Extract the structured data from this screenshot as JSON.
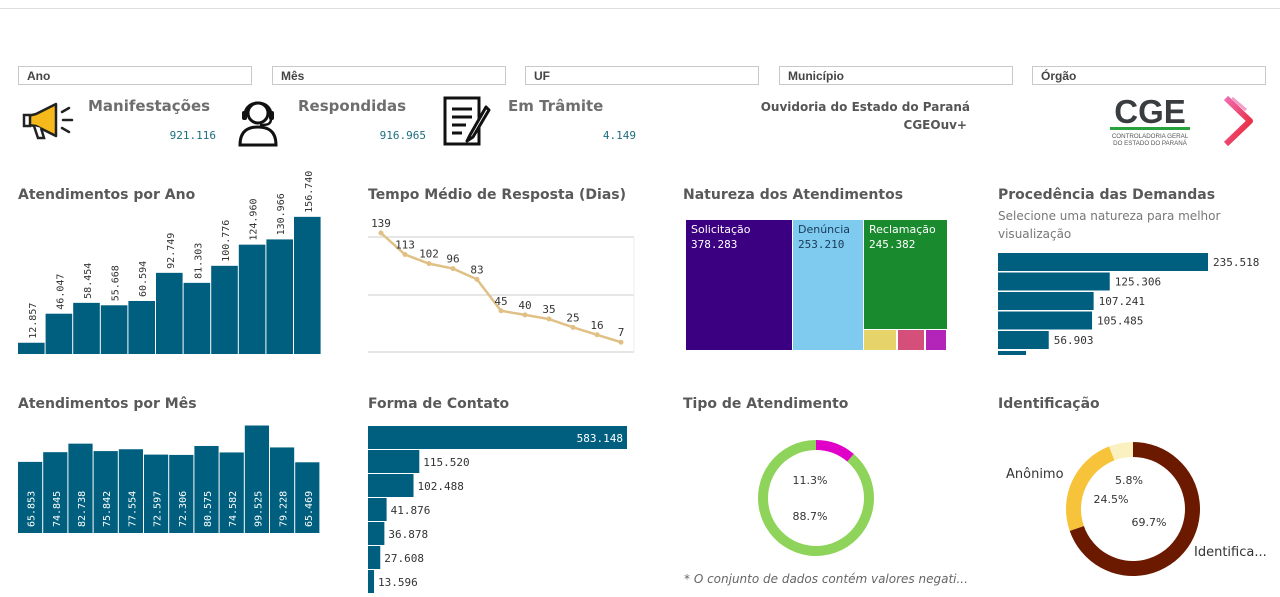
{
  "filters": [
    "Ano",
    "Mês",
    "UF",
    "Município",
    "Órgão"
  ],
  "kpis": [
    {
      "title": "Manifestações",
      "value": "921.116",
      "icon": "megaphone-icon"
    },
    {
      "title": "Respondidas",
      "value": "916.965",
      "icon": "headset-icon"
    },
    {
      "title": "Em Trâmite",
      "value": "4.149",
      "icon": "document-pen-icon"
    }
  ],
  "org": {
    "line1": "Ouvidoria do Estado do Paraná",
    "line2": "CGEOuv+"
  },
  "logo": {
    "text": "CGE",
    "sub1": "CONTROLADORIA GERAL",
    "sub2": "DO ESTADO DO PARANÁ"
  },
  "colors": {
    "teal": "#005f7f",
    "gold": "#e0c084",
    "purple": "#3b0082",
    "lightblue": "#7ecbef",
    "green": "#1a8a2e",
    "lime": "#8ed35a",
    "magenta": "#e000c8",
    "brown": "#6b1a00",
    "amber": "#f6c33b",
    "cream": "#fbf1c0"
  },
  "panels": {
    "ano": {
      "title": "Atendimentos por Ano"
    },
    "tempo": {
      "title": "Tempo Médio de Resposta (Dias)"
    },
    "natureza": {
      "title": "Natureza dos Atendimentos"
    },
    "procedencia": {
      "title": "Procedência das Demandas",
      "subtitle": "Selecione uma natureza para melhor visualização"
    },
    "mes": {
      "title": "Atendimentos por Mês"
    },
    "forma": {
      "title": "Forma de Contato"
    },
    "tipo": {
      "title": "Tipo de Atendimento",
      "note": "* O conjunto de dados contém valores negati..."
    },
    "identificacao": {
      "title": "Identificação",
      "label_left": "Anônimo",
      "label_right": "Identifica..."
    }
  },
  "chart_data": [
    {
      "id": "ano",
      "type": "bar",
      "values": [
        "12.857",
        "46.047",
        "58.454",
        "55.668",
        "60.594",
        "92.749",
        "81.303",
        "100.776",
        "124.960",
        "130.966",
        "156.740"
      ]
    },
    {
      "id": "tempo",
      "type": "line",
      "values": [
        139,
        113,
        102,
        96,
        83,
        45,
        40,
        35,
        25,
        16,
        7
      ]
    },
    {
      "id": "natureza",
      "type": "treemap",
      "items": [
        {
          "label": "Solicitação",
          "value": "378.283"
        },
        {
          "label": "Denúncia",
          "value": "253.210"
        },
        {
          "label": "Reclamação",
          "value": "245.382"
        }
      ]
    },
    {
      "id": "procedencia",
      "type": "bar",
      "orientation": "horizontal",
      "values": [
        "235.518",
        "125.306",
        "107.241",
        "105.485",
        "56.903"
      ]
    },
    {
      "id": "mes",
      "type": "bar",
      "values": [
        "65.853",
        "74.845",
        "82.738",
        "75.842",
        "77.554",
        "72.597",
        "72.306",
        "80.575",
        "74.582",
        "99.525",
        "79.228",
        "65.469"
      ]
    },
    {
      "id": "forma",
      "type": "bar",
      "orientation": "horizontal",
      "values": [
        "583.148",
        "115.520",
        "102.488",
        "41.876",
        "36.878",
        "27.608",
        "13.596"
      ]
    },
    {
      "id": "tipo",
      "type": "pie",
      "slices": [
        {
          "label": "11.3%",
          "value": 11.3
        },
        {
          "label": "88.7%",
          "value": 88.7
        }
      ]
    },
    {
      "id": "identificacao",
      "type": "pie",
      "slices": [
        {
          "label": "69.7%",
          "value": 69.7
        },
        {
          "label": "24.5%",
          "value": 24.5
        },
        {
          "label": "5.8%",
          "value": 5.8
        }
      ]
    }
  ]
}
